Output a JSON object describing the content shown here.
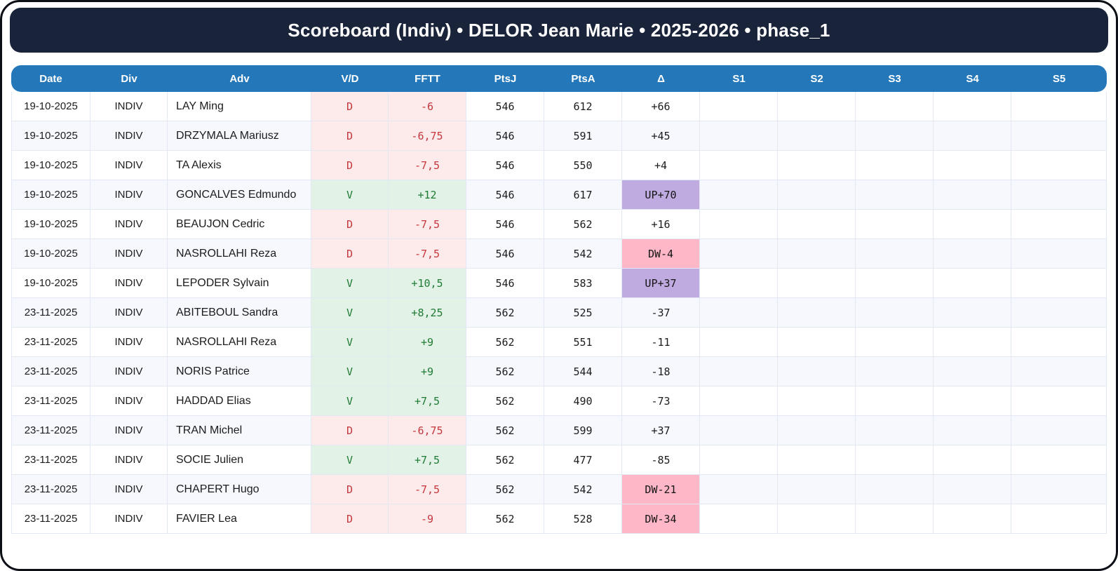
{
  "title": "Scoreboard (Indiv) • DELOR Jean Marie • 2025-2026 • phase_1",
  "colors": {
    "frame_border": "#0c0f16",
    "banner_bg": "#192339",
    "header_bg": "#2478ba",
    "row_alt_bg": "#f6f8fd",
    "grid_border": "#e2e8f4",
    "win_bg": "#e2f2e7",
    "win_text": "#1f7a34",
    "loss_bg": "#fdeaea",
    "loss_text": "#c4373d",
    "delta_up_bg": "#c0abe0",
    "delta_down_bg": "#fdb7c6"
  },
  "table": {
    "columns": [
      "Date",
      "Div",
      "Adv",
      "V/D",
      "FFTT",
      "PtsJ",
      "PtsA",
      "Δ",
      "S1",
      "S2",
      "S3",
      "S4",
      "S5"
    ],
    "rows": [
      {
        "date": "19-10-2025",
        "div": "INDIV",
        "adv": "LAY Ming",
        "vd": "D",
        "fftt": "-6",
        "ptsj": "546",
        "ptsa": "612",
        "delta": "+66",
        "delta_type": "normal",
        "s1": "",
        "s2": "",
        "s3": "",
        "s4": "",
        "s5": ""
      },
      {
        "date": "19-10-2025",
        "div": "INDIV",
        "adv": "DRZYMALA Mariusz",
        "vd": "D",
        "fftt": "-6,75",
        "ptsj": "546",
        "ptsa": "591",
        "delta": "+45",
        "delta_type": "normal",
        "s1": "",
        "s2": "",
        "s3": "",
        "s4": "",
        "s5": ""
      },
      {
        "date": "19-10-2025",
        "div": "INDIV",
        "adv": "TA Alexis",
        "vd": "D",
        "fftt": "-7,5",
        "ptsj": "546",
        "ptsa": "550",
        "delta": "+4",
        "delta_type": "normal",
        "s1": "",
        "s2": "",
        "s3": "",
        "s4": "",
        "s5": ""
      },
      {
        "date": "19-10-2025",
        "div": "INDIV",
        "adv": "GONCALVES Edmundo",
        "vd": "V",
        "fftt": "+12",
        "ptsj": "546",
        "ptsa": "617",
        "delta": "UP+70",
        "delta_type": "up",
        "s1": "",
        "s2": "",
        "s3": "",
        "s4": "",
        "s5": ""
      },
      {
        "date": "19-10-2025",
        "div": "INDIV",
        "adv": "BEAUJON Cedric",
        "vd": "D",
        "fftt": "-7,5",
        "ptsj": "546",
        "ptsa": "562",
        "delta": "+16",
        "delta_type": "normal",
        "s1": "",
        "s2": "",
        "s3": "",
        "s4": "",
        "s5": ""
      },
      {
        "date": "19-10-2025",
        "div": "INDIV",
        "adv": "NASROLLAHI Reza",
        "vd": "D",
        "fftt": "-7,5",
        "ptsj": "546",
        "ptsa": "542",
        "delta": "DW-4",
        "delta_type": "down",
        "s1": "",
        "s2": "",
        "s3": "",
        "s4": "",
        "s5": ""
      },
      {
        "date": "19-10-2025",
        "div": "INDIV",
        "adv": "LEPODER Sylvain",
        "vd": "V",
        "fftt": "+10,5",
        "ptsj": "546",
        "ptsa": "583",
        "delta": "UP+37",
        "delta_type": "up",
        "s1": "",
        "s2": "",
        "s3": "",
        "s4": "",
        "s5": ""
      },
      {
        "date": "23-11-2025",
        "div": "INDIV",
        "adv": "ABITEBOUL Sandra",
        "vd": "V",
        "fftt": "+8,25",
        "ptsj": "562",
        "ptsa": "525",
        "delta": "-37",
        "delta_type": "normal",
        "s1": "",
        "s2": "",
        "s3": "",
        "s4": "",
        "s5": ""
      },
      {
        "date": "23-11-2025",
        "div": "INDIV",
        "adv": "NASROLLAHI Reza",
        "vd": "V",
        "fftt": "+9",
        "ptsj": "562",
        "ptsa": "551",
        "delta": "-11",
        "delta_type": "normal",
        "s1": "",
        "s2": "",
        "s3": "",
        "s4": "",
        "s5": ""
      },
      {
        "date": "23-11-2025",
        "div": "INDIV",
        "adv": "NORIS Patrice",
        "vd": "V",
        "fftt": "+9",
        "ptsj": "562",
        "ptsa": "544",
        "delta": "-18",
        "delta_type": "normal",
        "s1": "",
        "s2": "",
        "s3": "",
        "s4": "",
        "s5": ""
      },
      {
        "date": "23-11-2025",
        "div": "INDIV",
        "adv": "HADDAD Elias",
        "vd": "V",
        "fftt": "+7,5",
        "ptsj": "562",
        "ptsa": "490",
        "delta": "-73",
        "delta_type": "normal",
        "s1": "",
        "s2": "",
        "s3": "",
        "s4": "",
        "s5": ""
      },
      {
        "date": "23-11-2025",
        "div": "INDIV",
        "adv": "TRAN Michel",
        "vd": "D",
        "fftt": "-6,75",
        "ptsj": "562",
        "ptsa": "599",
        "delta": "+37",
        "delta_type": "normal",
        "s1": "",
        "s2": "",
        "s3": "",
        "s4": "",
        "s5": ""
      },
      {
        "date": "23-11-2025",
        "div": "INDIV",
        "adv": "SOCIE Julien",
        "vd": "V",
        "fftt": "+7,5",
        "ptsj": "562",
        "ptsa": "477",
        "delta": "-85",
        "delta_type": "normal",
        "s1": "",
        "s2": "",
        "s3": "",
        "s4": "",
        "s5": ""
      },
      {
        "date": "23-11-2025",
        "div": "INDIV",
        "adv": "CHAPERT Hugo",
        "vd": "D",
        "fftt": "-7,5",
        "ptsj": "562",
        "ptsa": "542",
        "delta": "DW-21",
        "delta_type": "down",
        "s1": "",
        "s2": "",
        "s3": "",
        "s4": "",
        "s5": ""
      },
      {
        "date": "23-11-2025",
        "div": "INDIV",
        "adv": "FAVIER Lea",
        "vd": "D",
        "fftt": "-9",
        "ptsj": "562",
        "ptsa": "528",
        "delta": "DW-34",
        "delta_type": "down",
        "s1": "",
        "s2": "",
        "s3": "",
        "s4": "",
        "s5": ""
      }
    ]
  }
}
